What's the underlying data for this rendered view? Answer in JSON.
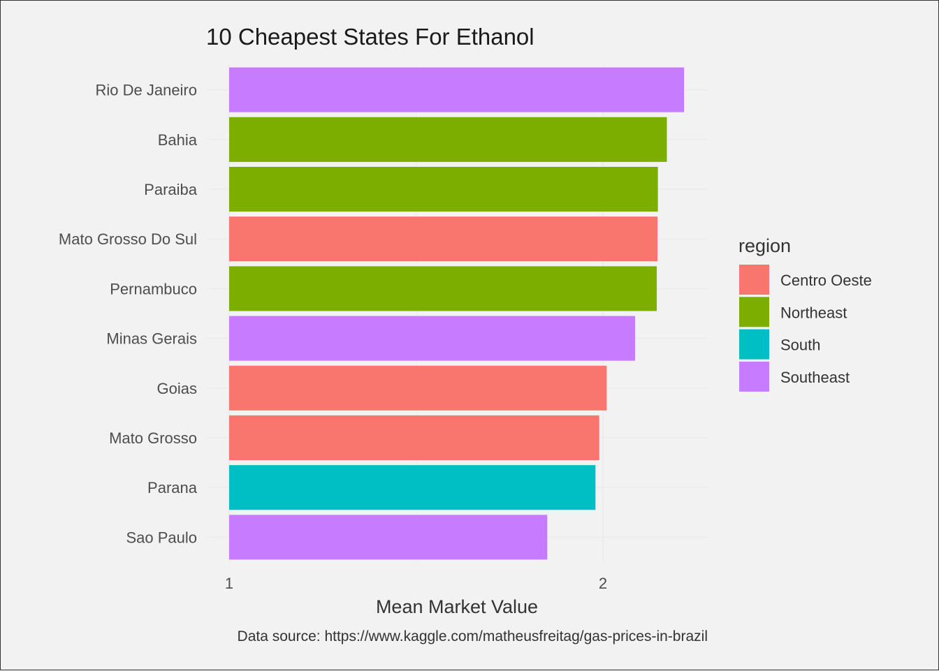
{
  "chart_data": {
    "type": "bar",
    "orientation": "horizontal",
    "title": "10 Cheapest States For Ethanol",
    "xlabel": "Mean Market Value",
    "ylabel": "",
    "caption": "Data source: https://www.kaggle.com/matheusfreitag/gas-prices-in-brazil",
    "xlim": [
      1,
      2.28
    ],
    "xticks": [
      1,
      2
    ],
    "grid": true,
    "legend": {
      "title": "region",
      "position": "right",
      "entries": [
        {
          "name": "Centro Oeste",
          "color": "#F8766D"
        },
        {
          "name": "Northeast",
          "color": "#7CAE00"
        },
        {
          "name": "South",
          "color": "#00BFC4"
        },
        {
          "name": "Southeast",
          "color": "#C77CFF"
        }
      ]
    },
    "bars": [
      {
        "category": "Rio De Janeiro",
        "value": 2.217,
        "region": "Southeast"
      },
      {
        "category": "Bahia",
        "value": 2.171,
        "region": "Northeast"
      },
      {
        "category": "Paraiba",
        "value": 2.147,
        "region": "Northeast"
      },
      {
        "category": "Mato Grosso Do Sul",
        "value": 2.146,
        "region": "Centro Oeste"
      },
      {
        "category": "Pernambuco",
        "value": 2.144,
        "region": "Northeast"
      },
      {
        "category": "Minas Gerais",
        "value": 2.086,
        "region": "Southeast"
      },
      {
        "category": "Goias",
        "value": 2.01,
        "region": "Centro Oeste"
      },
      {
        "category": "Mato Grosso",
        "value": 1.99,
        "region": "Centro Oeste"
      },
      {
        "category": "Parana",
        "value": 1.98,
        "region": "South"
      },
      {
        "category": "Sao Paulo",
        "value": 1.851,
        "region": "Southeast"
      }
    ]
  }
}
